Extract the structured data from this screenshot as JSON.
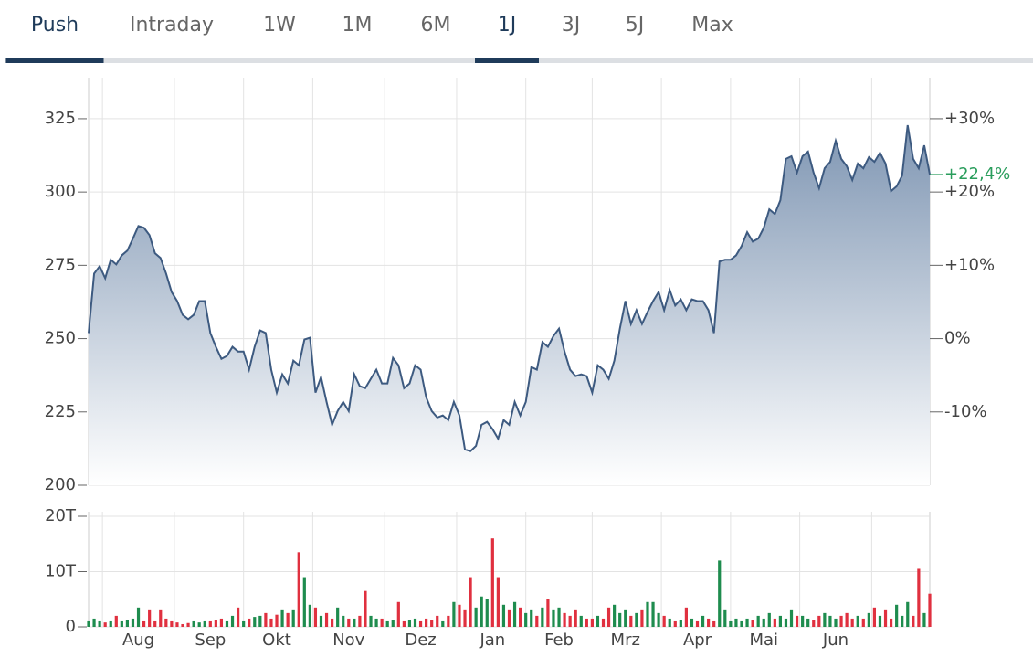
{
  "tabs": [
    "Push",
    "Intraday",
    "1W",
    "1M",
    "6M",
    "1J",
    "3J",
    "5J",
    "Max"
  ],
  "selected_tabs": [
    0,
    5
  ],
  "chart_data": [
    {
      "type": "area",
      "color": "#3d5a80",
      "categories": [
        null,
        null,
        null,
        null,
        null,
        null,
        null,
        null,
        null,
        "Aug",
        null,
        null,
        null,
        null,
        null,
        null,
        null,
        null,
        null,
        null,
        null,
        null,
        "Sep",
        null,
        null,
        null,
        null,
        null,
        null,
        null,
        null,
        null,
        null,
        null,
        "Okt",
        null,
        null,
        null,
        null,
        null,
        null,
        null,
        null,
        null,
        null,
        null,
        null,
        "Nov",
        null,
        null,
        null,
        null,
        null,
        null,
        null,
        null,
        null,
        null,
        null,
        null,
        "Dez",
        null,
        null,
        null,
        null,
        null,
        null,
        null,
        null,
        null,
        null,
        null,
        null,
        "Jan",
        null,
        null,
        null,
        null,
        null,
        null,
        null,
        null,
        null,
        null,
        null,
        "Feb",
        null,
        null,
        null,
        null,
        null,
        null,
        null,
        null,
        null,
        null,
        null,
        "Mrz",
        null,
        null,
        null,
        null,
        null,
        null,
        null,
        null,
        null,
        null,
        null,
        null,
        "Apr",
        null,
        null,
        null,
        null,
        null,
        null,
        null,
        null,
        null,
        null,
        null,
        "Mai",
        null,
        null,
        null,
        null,
        null,
        null,
        null,
        null,
        null,
        null,
        null,
        null,
        "Jun",
        null,
        null,
        null,
        null,
        null,
        null,
        null,
        null,
        null,
        null,
        null,
        null,
        null,
        null,
        null,
        null,
        null
      ],
      "values": [
        251.9,
        272.2,
        274.7,
        270.6,
        276.9,
        275.3,
        278.4,
        280.0,
        284.1,
        288.4,
        287.8,
        285.3,
        279.1,
        277.5,
        272.2,
        265.9,
        262.8,
        258.1,
        256.6,
        258.1,
        262.8,
        262.8,
        251.9,
        247.2,
        243.1,
        244.1,
        247.2,
        245.6,
        245.6,
        239.4,
        247.2,
        252.8,
        251.9,
        239.4,
        231.6,
        237.8,
        234.7,
        242.5,
        240.9,
        249.7,
        250.3,
        231.6,
        236.9,
        228.4,
        220.6,
        225.3,
        228.4,
        225.3,
        237.8,
        233.8,
        233.1,
        236.3,
        239.4,
        234.7,
        234.7,
        243.4,
        240.9,
        233.1,
        234.7,
        240.9,
        239.4,
        230.0,
        225.3,
        223.1,
        223.8,
        222.2,
        228.4,
        223.8,
        212.2,
        211.6,
        213.4,
        220.6,
        221.6,
        219.1,
        215.9,
        222.2,
        220.6,
        228.4,
        223.8,
        228.4,
        240.3,
        239.4,
        248.8,
        247.2,
        250.9,
        253.4,
        245.6,
        239.4,
        237.2,
        237.8,
        237.2,
        231.6,
        240.9,
        239.4,
        236.3,
        242.5,
        253.4,
        262.8,
        255.0,
        259.7,
        255.0,
        259.1,
        262.8,
        265.9,
        259.7,
        266.6,
        261.3,
        263.4,
        259.7,
        263.4,
        262.8,
        262.8,
        259.7,
        251.9,
        276.3,
        276.9,
        276.9,
        278.4,
        281.6,
        286.3,
        283.1,
        284.1,
        287.8,
        294.1,
        292.5,
        297.2,
        311.3,
        312.2,
        306.6,
        312.2,
        313.8,
        306.6,
        301.3,
        308.1,
        310.3,
        317.5,
        311.3,
        308.8,
        304.1,
        309.7,
        308.1,
        311.9,
        310.3,
        313.4,
        309.7,
        300.3,
        301.9,
        305.6,
        322.8,
        311.3,
        308.1,
        315.9,
        306
      ],
      "ylim": [
        200,
        339
      ],
      "yticks": [
        200,
        225,
        250,
        275,
        300,
        325
      ],
      "y2lim": [
        -20,
        35.6
      ],
      "y2ticks": [
        {
          "value": -10,
          "label": "-10%"
        },
        {
          "value": 0,
          "label": "0%"
        },
        {
          "value": 10,
          "label": "+10%"
        },
        {
          "value": 20,
          "label": "+20%"
        },
        {
          "value": 30,
          "label": "+30%"
        }
      ],
      "current_change": {
        "value": 22.4,
        "label": "+22,4%",
        "color": "#2a9d5c"
      },
      "grid": true
    },
    {
      "type": "bar",
      "up_color": "#1e8c4e",
      "down_color": "#e0303f",
      "values": [
        1,
        1.5,
        1,
        0.8,
        1,
        2,
        1,
        1.2,
        1.5,
        3.5,
        1,
        3,
        1,
        3,
        1.5,
        1,
        0.8,
        0.5,
        0.7,
        1,
        0.8,
        1,
        1,
        1.2,
        1.5,
        1,
        2,
        3.5,
        1,
        1.5,
        1.8,
        2,
        2.5,
        1.5,
        2.2,
        3,
        2.5,
        3,
        13.5,
        9,
        4,
        3.5,
        2,
        2.5,
        1.5,
        3.5,
        2,
        1.5,
        1.5,
        2,
        6.5,
        2,
        1.5,
        1.5,
        1,
        1.2,
        4.5,
        1,
        1.2,
        1.5,
        1,
        1.5,
        1.2,
        2,
        1,
        2,
        4.5,
        4,
        3,
        9,
        3.5,
        5.5,
        5,
        16,
        9,
        4,
        3,
        4.5,
        3.5,
        2.5,
        3,
        2,
        3.5,
        5,
        3,
        3.5,
        2.5,
        2,
        3,
        2,
        1.5,
        1.5,
        2,
        1.5,
        3.5,
        4,
        2.5,
        3,
        2,
        2.5,
        3,
        4.5,
        4.5,
        2.5,
        2,
        1.5,
        1,
        1.2,
        3.5,
        1.5,
        1,
        2,
        1.5,
        1,
        12,
        3,
        1,
        1.5,
        1,
        1.5,
        1.2,
        2,
        1.5,
        2.5,
        1.5,
        2,
        1.5,
        3,
        2,
        2,
        1.5,
        1.2,
        2,
        2.5,
        2,
        1.5,
        2,
        2.5,
        1.5,
        2,
        1.5,
        2.5,
        3.5,
        2,
        3,
        1.5,
        4,
        2,
        4.5,
        2,
        10.5,
        2.5,
        6
      ],
      "ylim": [
        0,
        20
      ],
      "yticks": [
        0,
        {
          "value": 10,
          "label": "10T"
        },
        {
          "value": 20,
          "label": "20T"
        }
      ],
      "grid": true
    }
  ]
}
